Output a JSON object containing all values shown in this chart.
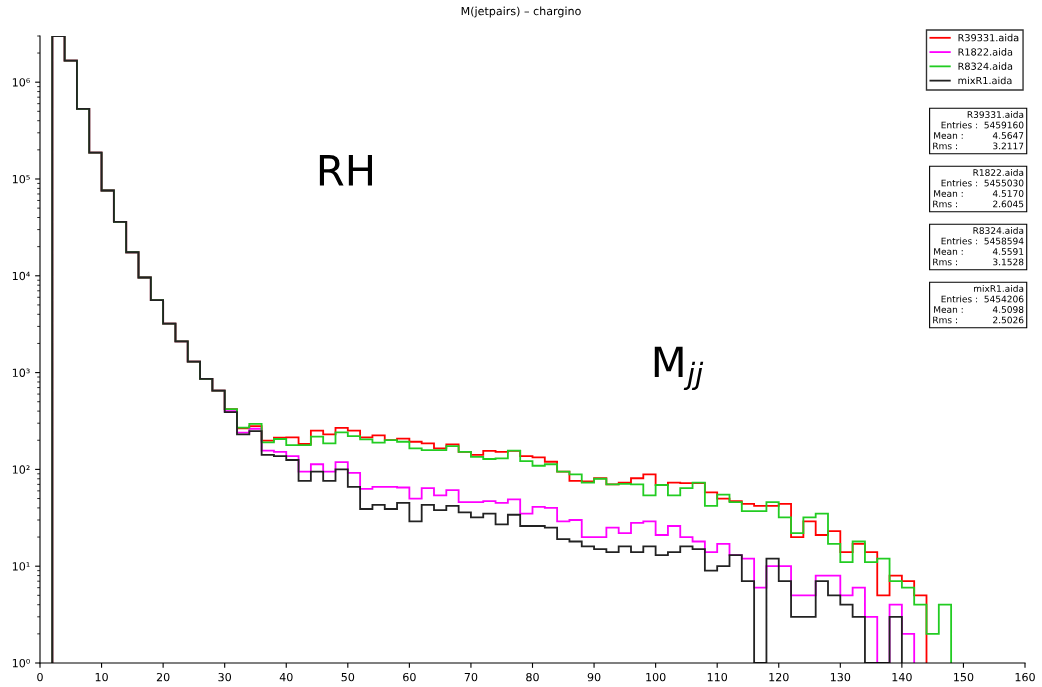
{
  "chart_data": {
    "type": "histogram",
    "title": "M(jetpairs) – chargino",
    "bins": [
      2,
      4,
      6,
      8,
      10,
      12,
      14,
      16,
      18,
      20,
      22,
      24,
      26,
      28,
      30,
      32,
      34,
      36,
      38,
      40,
      42,
      44,
      46,
      48,
      50,
      52,
      54,
      56,
      58,
      60,
      62,
      64,
      66,
      68,
      70,
      72,
      74,
      76,
      78,
      80,
      82,
      84,
      86,
      88,
      90,
      92,
      94,
      96,
      98,
      100,
      102,
      104,
      106,
      108,
      110,
      112,
      114,
      116,
      118,
      120,
      122,
      124,
      126,
      128,
      130,
      132,
      134,
      136,
      138,
      140,
      142,
      144,
      146,
      148
    ],
    "series": [
      {
        "name": "R39331.aida",
        "color": "#ff0000",
        "bins": [
          2,
          4,
          6,
          8,
          10,
          12,
          14,
          16,
          18,
          20,
          22,
          24,
          26,
          28,
          30,
          32,
          34,
          36,
          38,
          40,
          42,
          44,
          46,
          48,
          50,
          52,
          54,
          56,
          58,
          60,
          62,
          64,
          66,
          68,
          70,
          72,
          74,
          76,
          78,
          80,
          82,
          84,
          86,
          88,
          90,
          92,
          94,
          96,
          98,
          100,
          102,
          104,
          106,
          108,
          110,
          112,
          114,
          116,
          118,
          120,
          122,
          124,
          126,
          128,
          130,
          132,
          134,
          136,
          138,
          140,
          142,
          144
        ],
        "values": [
          3000000,
          1670000,
          530000,
          187000,
          76000,
          36000,
          17500,
          9600,
          5600,
          3200,
          2100,
          1300,
          860,
          650,
          420,
          265,
          280,
          198,
          213,
          214,
          183,
          251,
          230,
          269,
          251,
          214,
          225,
          201,
          208,
          193,
          186,
          165,
          181,
          152,
          141,
          155,
          152,
          155,
          137,
          133,
          120,
          95,
          76,
          75,
          81,
          70,
          73,
          81,
          89,
          69,
          73,
          72,
          72,
          58,
          50,
          47,
          44,
          42,
          42,
          44,
          20,
          29,
          21,
          23,
          14,
          17,
          14,
          5,
          8,
          7,
          5
        ]
      },
      {
        "name": "R1822.aida",
        "color": "#ff00ff",
        "bins": [
          2,
          4,
          6,
          8,
          10,
          12,
          14,
          16,
          18,
          20,
          22,
          24,
          26,
          28,
          30,
          32,
          34,
          36,
          38,
          40,
          42,
          44,
          46,
          48,
          50,
          52,
          54,
          56,
          58,
          60,
          62,
          64,
          66,
          68,
          70,
          72,
          74,
          76,
          78,
          80,
          82,
          84,
          86,
          88,
          90,
          92,
          94,
          96,
          98,
          100,
          102,
          104,
          106,
          108,
          110,
          112,
          114,
          116,
          118,
          120,
          122,
          124,
          126,
          128,
          130,
          132,
          134,
          136,
          138,
          140,
          142
        ],
        "values": [
          3000000,
          1670000,
          530000,
          187000,
          76000,
          36000,
          17500,
          9600,
          5600,
          3200,
          2100,
          1300,
          860,
          650,
          400,
          240,
          263,
          156,
          152,
          137,
          95,
          113,
          95,
          119,
          92,
          63,
          66,
          66,
          65,
          50,
          64,
          54,
          61,
          46,
          46,
          47,
          45,
          49,
          35,
          41,
          40,
          29,
          30,
          20,
          20,
          25,
          22,
          28,
          29,
          21,
          26,
          20,
          18,
          14,
          17,
          13,
          12,
          6,
          10,
          10,
          5,
          5,
          8,
          8,
          5,
          6,
          3,
          1,
          4,
          2
        ]
      },
      {
        "name": "R8324.aida",
        "color": "#22cc22",
        "values": [
          3000000,
          1670000,
          530000,
          187000,
          76000,
          36000,
          17500,
          9600,
          5600,
          3200,
          2100,
          1300,
          860,
          650,
          420,
          270,
          295,
          190,
          206,
          178,
          178,
          218,
          186,
          241,
          221,
          204,
          189,
          201,
          193,
          165,
          158,
          158,
          174,
          152,
          135,
          128,
          130,
          156,
          122,
          109,
          113,
          95,
          89,
          73,
          80,
          70,
          71,
          70,
          54,
          69,
          54,
          64,
          73,
          42,
          55,
          46,
          37,
          37,
          46,
          32,
          22,
          32,
          35,
          17,
          11,
          18,
          11,
          12,
          7,
          6,
          4,
          2,
          4
        ]
      },
      {
        "name": "mixR1.aida",
        "color": "#222222",
        "bins": [
          2,
          4,
          6,
          8,
          10,
          12,
          14,
          16,
          18,
          20,
          22,
          24,
          26,
          28,
          30,
          32,
          34,
          36,
          38,
          40,
          42,
          44,
          46,
          48,
          50,
          52,
          54,
          56,
          58,
          60,
          62,
          64,
          66,
          68,
          70,
          72,
          74,
          76,
          78,
          80,
          82,
          84,
          86,
          88,
          90,
          92,
          94,
          96,
          98,
          100,
          102,
          104,
          106,
          108,
          110,
          112,
          114,
          116,
          118,
          120,
          122,
          124,
          126,
          128,
          130,
          132,
          134,
          136,
          138,
          140
        ],
        "values": [
          3000000,
          1670000,
          530000,
          187000,
          76000,
          36000,
          17500,
          9600,
          5600,
          3200,
          2100,
          1300,
          860,
          650,
          390,
          230,
          249,
          141,
          137,
          125,
          76,
          95,
          76,
          100,
          66,
          39,
          43,
          39,
          45,
          29,
          43,
          38,
          42,
          36,
          32,
          35,
          27,
          34,
          26,
          26,
          25,
          19,
          18,
          16,
          15,
          14,
          16,
          14,
          16,
          13,
          14,
          16,
          15,
          9,
          10,
          13,
          7,
          1,
          12,
          7,
          3,
          3,
          7,
          5,
          4,
          3,
          1,
          1,
          3
        ]
      }
    ],
    "log": "y",
    "xlim": [
      0,
      160
    ],
    "xticks": [
      0,
      10,
      20,
      30,
      40,
      50,
      60,
      70,
      80,
      90,
      100,
      110,
      120,
      130,
      140,
      150,
      160
    ],
    "ylim": [
      1,
      3000000
    ],
    "yticks": [
      {
        "value": 1,
        "label": "10⁰"
      },
      {
        "value": 10,
        "label": "10¹"
      },
      {
        "value": 100,
        "label": "10²"
      },
      {
        "value": 1000,
        "label": "10³"
      },
      {
        "value": 10000,
        "label": "10⁴"
      },
      {
        "value": 100000,
        "label": "10⁵"
      },
      {
        "value": 1000000,
        "label": "10⁶"
      }
    ],
    "grid": false,
    "legend": "top right",
    "annotations": [
      "RH",
      "M$_{jj}$",
      "R39331.aida\nEntries :  5459160\nMean :          4.5647\nRms :            3.2117",
      "R1822.aida\nEntries :  5455030\nMean :          4.5170\nRms :            2.6045",
      "R8324.aida\nEntries :  5458594\nMean :          4.5591\nRms :            3.1528",
      "mixR1.aida\nEntries :  5454206\nMean :          4.5098\nRms :            2.5026"
    ]
  }
}
